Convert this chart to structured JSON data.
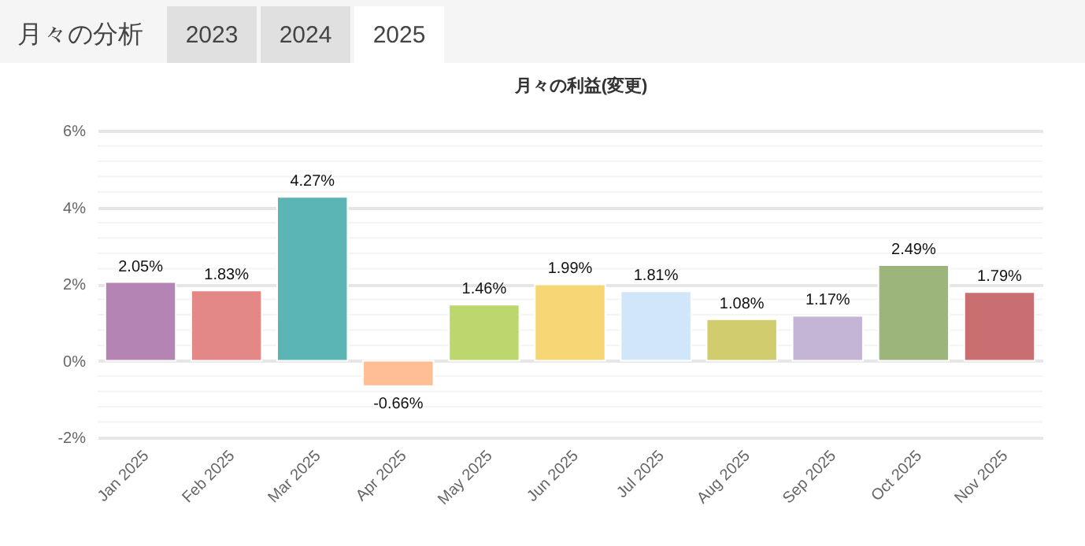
{
  "chart_data": {
    "type": "bar",
    "title": "月々の利益(変更)",
    "annotations": [
      "月々の分析",
      "2023",
      "2024",
      "2025"
    ],
    "categories": [
      "Jan 2025",
      "Feb 2025",
      "Mar 2025",
      "Apr 2025",
      "May 2025",
      "Jun 2025",
      "Jul 2025",
      "Aug 2025",
      "Sep 2025",
      "Oct 2025",
      "Nov 2025"
    ],
    "values": [
      2.05,
      1.83,
      4.27,
      -0.66,
      1.46,
      1.99,
      1.81,
      1.08,
      1.17,
      2.49,
      1.79
    ],
    "value_labels": [
      "2.05%",
      "1.83%",
      "4.27%",
      "-0.66%",
      "1.46%",
      "1.99%",
      "1.81%",
      "1.08%",
      "1.17%",
      "2.49%",
      "1.79%"
    ],
    "colors": [
      "#b384b4",
      "#e38886",
      "#5bb5b5",
      "#ffbe94",
      "#bdd76f",
      "#f7d675",
      "#d1e6f8",
      "#d1cc6d",
      "#c4b5d6",
      "#9bb57b",
      "#c96e71"
    ],
    "ylim": [
      -2,
      6
    ],
    "yticks": [
      {
        "value": -2,
        "label": "-2%"
      },
      {
        "value": -1.6,
        "label": null
      },
      {
        "value": -1.2,
        "label": null
      },
      {
        "value": -0.8,
        "label": null
      },
      {
        "value": -0.4,
        "label": null
      },
      {
        "value": 0,
        "label": "0%"
      },
      {
        "value": 0.4,
        "label": null
      },
      {
        "value": 0.8,
        "label": null
      },
      {
        "value": 1.2,
        "label": null
      },
      {
        "value": 1.6,
        "label": null
      },
      {
        "value": 2,
        "label": "2%"
      },
      {
        "value": 2.4,
        "label": null
      },
      {
        "value": 2.8,
        "label": null
      },
      {
        "value": 3.2,
        "label": null
      },
      {
        "value": 3.6,
        "label": null
      },
      {
        "value": 4,
        "label": "4%"
      },
      {
        "value": 4.4,
        "label": null
      },
      {
        "value": 4.8,
        "label": null
      },
      {
        "value": 5.2,
        "label": null
      },
      {
        "value": 5.6,
        "label": null
      },
      {
        "value": 6,
        "label": "6%"
      }
    ],
    "grid": true
  }
}
